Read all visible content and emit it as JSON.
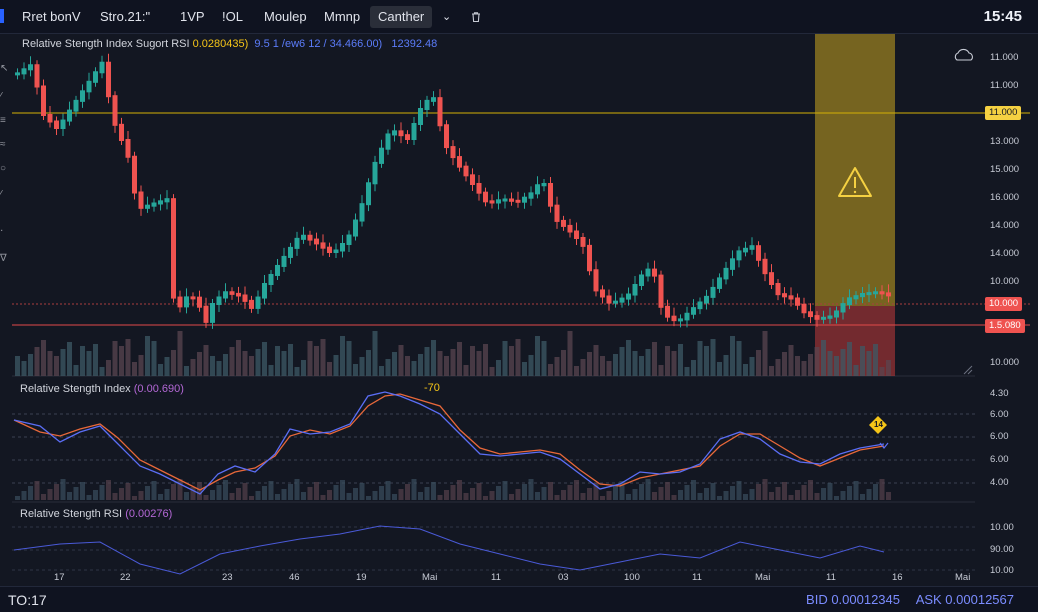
{
  "toolbar": {
    "items": [
      {
        "label": "Rret bonV",
        "active": false
      },
      {
        "label": "Stro.21:\"",
        "active": false
      },
      {
        "label": "1VP",
        "active": false
      },
      {
        "label": "!OL",
        "active": false
      },
      {
        "label": "Moulep",
        "active": false
      },
      {
        "label": "Mmnp",
        "active": false
      },
      {
        "label": "Canther",
        "active": true
      }
    ],
    "chevron_icon": "chevron-down-icon",
    "trash_icon": "trash-icon",
    "clock": "15:45"
  },
  "main_panel": {
    "title": "Relative Stength Index Sugort RSI",
    "value1": "0.0280435)",
    "value2": "9.5 1 /ew6 12 / 34.466.00)",
    "value3": "12392.48",
    "y_labels": [
      "11.000",
      "11.000",
      "11.000",
      "13.000",
      "15.000",
      "16.000",
      "14.000",
      "14.000",
      "10.000",
      "10.000",
      "10.000"
    ],
    "tag_yellow": "11.000",
    "tag_red1": "10.000",
    "tag_red2": "1.5.080",
    "warning_icon": "warning-triangle-icon",
    "settings_icon": "cloud-settings-icon"
  },
  "rsi_panel": {
    "title": "Relative Stength Index",
    "value": "(0.00.690)",
    "peak_label": "-70",
    "y_labels": [
      "4.30",
      "6.00",
      "6.00",
      "6.00",
      "4.00"
    ],
    "marker_label": "14"
  },
  "rsi2_panel": {
    "title": "Relative Stength RSI",
    "value": "(0.00276)",
    "y_labels": [
      "10.00",
      "90.00",
      "10.00"
    ]
  },
  "x_labels": [
    "17",
    "22",
    "23",
    "46",
    "19",
    "Mai",
    "11",
    "03",
    "100",
    "11",
    "Mai",
    "11",
    "16",
    "Mai"
  ],
  "status": {
    "left": "TO:17",
    "bid": "BID 0.00012345",
    "ask": "ASK 0.00012567"
  },
  "colors": {
    "up": "#26a69a",
    "down": "#ef5350",
    "yellow_line": "#d4b106",
    "red_line": "#e24a4a",
    "rsi_blue": "#5b6ef5",
    "rsi_red": "#e8683a"
  }
}
